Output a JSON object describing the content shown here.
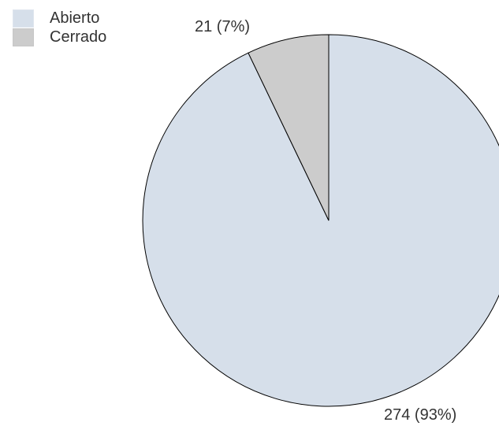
{
  "chart_data": {
    "type": "pie",
    "categories": [
      "Abierto",
      "Cerrado"
    ],
    "values": [
      274,
      21
    ],
    "percentages": [
      93,
      7
    ],
    "colors": [
      "#d6dfea",
      "#cccccc"
    ],
    "stroke_color": "#000000",
    "start_angle": "12 o'clock",
    "direction": "clockwise",
    "legend_position": "top-left",
    "data_labels": [
      "274   (93%)",
      "21   (7%)"
    ]
  }
}
